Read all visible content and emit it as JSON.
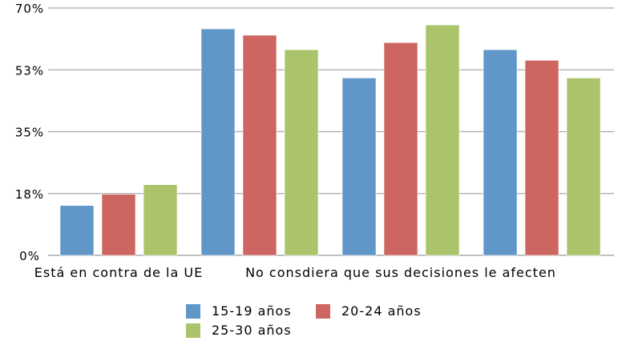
{
  "chart_data": {
    "type": "bar",
    "categories": [
      "Está en contra de la UE",
      "",
      "No consdiera que sus decisiones le afecten",
      ""
    ],
    "series": [
      {
        "name": "15-19 años",
        "color": "#6196c9",
        "values": [
          14.1,
          64.1,
          50.2,
          58.2
        ]
      },
      {
        "name": "20-24 años",
        "color": "#cd6660",
        "values": [
          17.3,
          62.3,
          60.2,
          55.2
        ]
      },
      {
        "name": "25-30 años",
        "color": "#abc46c",
        "values": [
          20.0,
          58.2,
          65.2,
          50.2
        ]
      }
    ],
    "yticks": [
      "0%",
      "18%",
      "35%",
      "53%",
      "70%"
    ],
    "ytick_values": [
      0,
      17.5,
      35,
      52.5,
      70
    ],
    "ylim": [
      0,
      70
    ],
    "grid": true,
    "legend_position": "bottom",
    "title": "",
    "xlabel": "",
    "ylabel": ""
  }
}
